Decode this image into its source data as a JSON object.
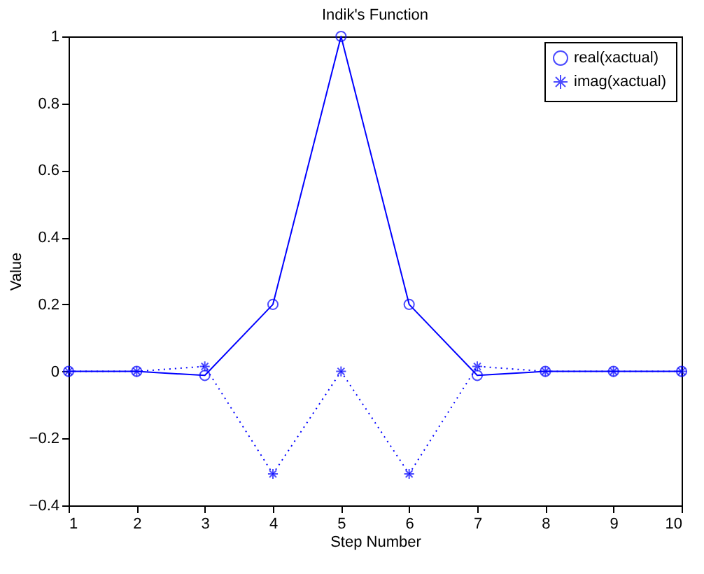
{
  "chart_data": {
    "type": "line",
    "title": "Indik's Function",
    "xlabel": "Step Number",
    "ylabel": "Value",
    "x": [
      1,
      2,
      3,
      4,
      5,
      6,
      7,
      8,
      9,
      10
    ],
    "series": [
      {
        "name": "real(xactual)",
        "color": "#0000ff",
        "marker": "circle",
        "line_style": "solid",
        "values": [
          0,
          0,
          -0.012,
          0.2,
          1,
          0.2,
          -0.012,
          0,
          0,
          0
        ]
      },
      {
        "name": "imag(xactual)",
        "color": "#0000ff",
        "marker": "cross",
        "line_style": "dotted",
        "values": [
          0,
          0,
          0.015,
          -0.306,
          0,
          -0.306,
          0.015,
          0,
          0,
          0
        ]
      }
    ],
    "xlim": [
      1,
      10
    ],
    "xticks": [
      1,
      2,
      3,
      4,
      5,
      6,
      7,
      8,
      9,
      10
    ],
    "ylim": [
      -0.4,
      1
    ],
    "yticks": [
      -0.4,
      -0.2,
      0,
      0.2,
      0.4,
      0.6,
      0.8,
      1
    ],
    "grid": false,
    "legend": "top right"
  }
}
